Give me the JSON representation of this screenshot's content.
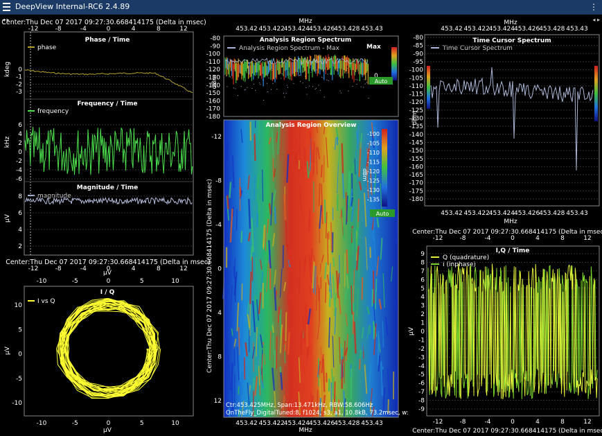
{
  "app": {
    "title": "DeepView Internal-RC6 2.4.89",
    "menu_icon": "hamburger-icon",
    "more_icon": "vertical-dots-icon",
    "left_arrows": "◂ ▸",
    "right_arrows": "◂ ▸"
  },
  "time_axis_label": "Center:Thu Dec 07 2017 09:27:30.668414175 (Delta in msec)",
  "time_axis_label_vertical": "Center:Thu Dec 07 2017 09:27:30.668414175 (Delta in msec)",
  "time_ticks": [
    "-12",
    "-8",
    "-4",
    "0",
    "4",
    "8",
    "12"
  ],
  "freq_ticks": [
    "453.42",
    "453.422",
    "453.424",
    "453.426",
    "453.428",
    "453.43"
  ],
  "freq_unit": "MHz",
  "phase": {
    "title": "Phase / Time",
    "legend": "phase",
    "ylabel": "kdeg",
    "ticks": [
      "0",
      "-1",
      "-2",
      "-3"
    ]
  },
  "frequency": {
    "title": "Frequency / Time",
    "legend": "frequency",
    "ylabel": "kHz",
    "ticks": [
      "6",
      "4",
      "2",
      "0",
      "-2",
      "-4",
      "-6"
    ]
  },
  "magnitude": {
    "title": "Magnitude / Time",
    "legend": "magnitude",
    "ylabel": "µV",
    "ticks": [
      "8",
      "6",
      "4",
      "2"
    ]
  },
  "iq": {
    "title": "I / Q",
    "legend": "I vs Q",
    "xlabel": "µV",
    "ylabel": "µV",
    "xticks": [
      "-10",
      "-5",
      "0",
      "5",
      "10"
    ],
    "yticks": [
      "10",
      "5",
      "0",
      "-5",
      "-10"
    ]
  },
  "spectrum": {
    "title": "Analysis Region Spectrum",
    "legend": "Analysis Region Spectrum - Max",
    "ylabel": "dBm",
    "max_label": "Max",
    "auto_label": "Auto",
    "zero_label": "0",
    "ticks": [
      "-80",
      "-90",
      "-100",
      "-110",
      "-120",
      "-130",
      "-140",
      "-150",
      "-160",
      "-170",
      "-180"
    ],
    "scale_ticks": [
      "-100",
      "-110",
      "-120",
      "-130"
    ]
  },
  "overview": {
    "title": "Analysis Region Overview",
    "auto_label": "Auto",
    "scale_unit": "dBm",
    "scale_ticks": [
      "-100",
      "-105",
      "-110",
      "-115",
      "-120",
      "-125",
      "-130",
      "-135"
    ],
    "info_line1": "Ctr:453.425MHz, Span:13.471kHz, RBW:58.606Hz",
    "info_line2": "OnTheFly_DigitalTuned:8, f1024, s3, a1, 10.8kB, 73.2msec, w:",
    "yticks": [
      "-12",
      "-8",
      "-4",
      "0",
      "4",
      "8",
      "12"
    ]
  },
  "time_cursor": {
    "title": "Time Cursor Spectrum",
    "legend": "Time Cursor Spectrum",
    "ylabel": "dBm",
    "ticks": [
      "-80",
      "-85",
      "-90",
      "-95",
      "-100",
      "-105",
      "-110",
      "-115",
      "-120",
      "-125",
      "-130",
      "-135",
      "-140",
      "-145",
      "-150",
      "-155",
      "-160",
      "-165",
      "-170",
      "-175",
      "-180"
    ]
  },
  "iqtime": {
    "title": "I,Q / Time",
    "legend_q": "Q (quadrature)",
    "legend_i": "I (inphase)",
    "ylabel": "µV",
    "ticks": [
      "9",
      "8",
      "7",
      "6",
      "5",
      "4",
      "3",
      "2",
      "1",
      "0",
      "-1",
      "-2",
      "-3",
      "-4",
      "-5",
      "-6",
      "-7",
      "-8",
      "-9"
    ]
  },
  "colors": {
    "titlebar": "#1b3a66",
    "phase": "#b5a02a",
    "frequency": "#4ce04c",
    "magnitude": "#b6bfe0",
    "iq": "#ffff33",
    "spectrum_trace": "#aab6d6",
    "q_trace": "#e4f03a",
    "i_trace": "#7cd62c",
    "grid": "#6a6a6a",
    "auto_bg": "#2a9a2a"
  }
}
